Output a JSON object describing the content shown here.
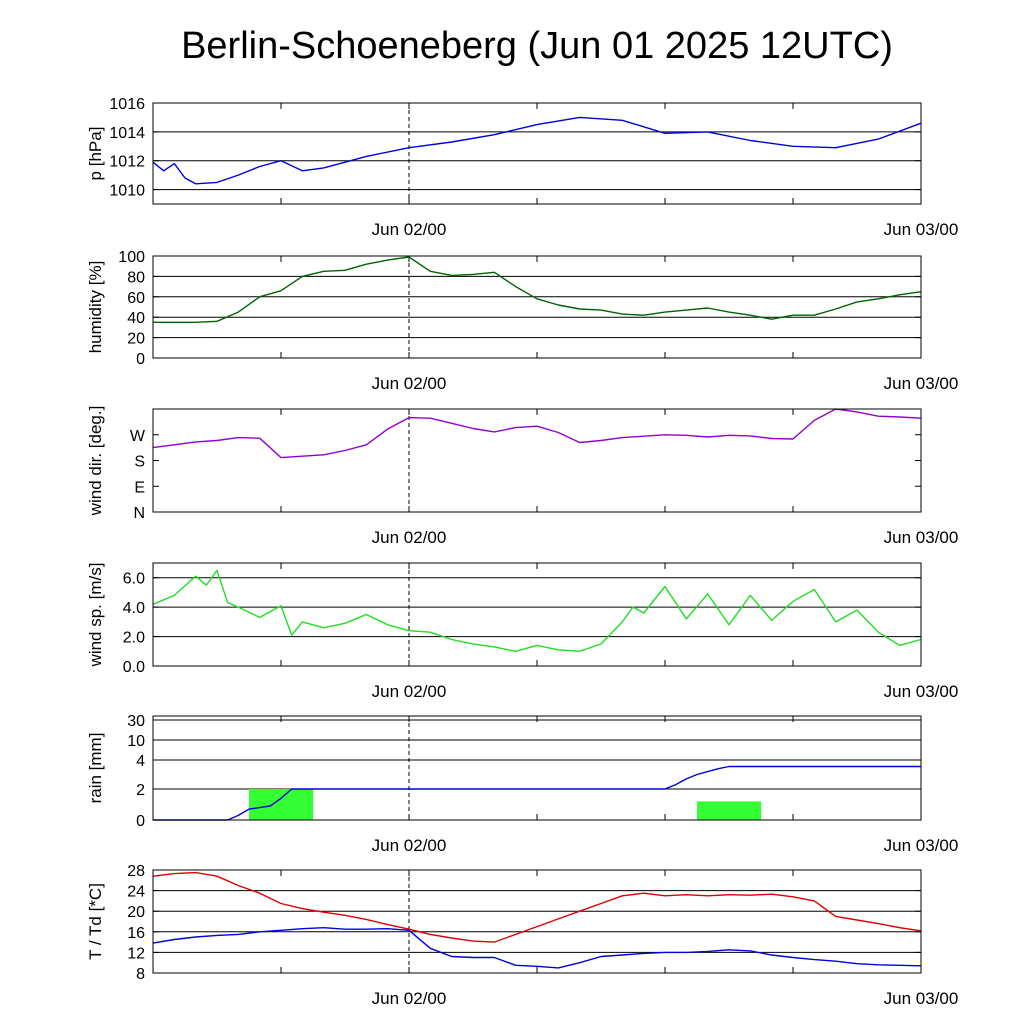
{
  "title": "Berlin-Schoeneberg (Jun 01 2025 12UTC)",
  "x_axis": {
    "tick_labels": [
      "Jun 02/00",
      "Jun 03/00"
    ],
    "start": "2025-06-01 12UTC",
    "end": "2025-06-03 00UTC"
  },
  "colors": {
    "pressure": "#0000dd",
    "humidity": "#006400",
    "wind_dir": "#9400d3",
    "wind_speed": "#22dd22",
    "rain_total": "#0000dd",
    "rain_bars": "#33ff33",
    "temperature": "#dd0000",
    "dewpoint": "#0000dd"
  },
  "chart_data": [
    {
      "id": "pressure",
      "type": "line",
      "ylabel": "p [hPa]",
      "ylim": [
        1009,
        1016
      ],
      "yticks": [
        1010,
        1012,
        1014,
        1016
      ],
      "ytick_labels": [
        "1010",
        "1012",
        "1014",
        "1016"
      ],
      "grid": true,
      "series": [
        {
          "key": "pressure",
          "x": [
            0,
            0.5,
            1,
            1.5,
            2,
            3,
            4,
            5,
            6,
            7,
            8,
            9,
            10,
            12,
            14,
            16,
            18,
            20,
            22,
            24,
            26,
            28,
            30,
            32,
            34,
            36
          ],
          "values": [
            1011.9,
            1011.3,
            1011.8,
            1010.8,
            1010.4,
            1010.5,
            1011.0,
            1011.6,
            1012.0,
            1011.3,
            1011.5,
            1011.9,
            1012.3,
            1012.9,
            1013.3,
            1013.8,
            1014.5,
            1015.0,
            1014.8,
            1013.9,
            1014.0,
            1013.4,
            1013.0,
            1012.9,
            1013.5,
            1014.6
          ]
        }
      ]
    },
    {
      "id": "humidity",
      "type": "line",
      "ylabel": "humidity [%]",
      "ylim": [
        0,
        100
      ],
      "yticks": [
        0,
        20,
        40,
        60,
        80,
        100
      ],
      "ytick_labels": [
        "0",
        "20",
        "40",
        "60",
        "80",
        "100"
      ],
      "grid": true,
      "series": [
        {
          "key": "humidity",
          "x": [
            0,
            1,
            2,
            3,
            4,
            5,
            6,
            7,
            8,
            9,
            10,
            11,
            12,
            13,
            14,
            15,
            16,
            17,
            18,
            19,
            20,
            21,
            22,
            23,
            24,
            25,
            26,
            27,
            28,
            29,
            30,
            31,
            32,
            33,
            34,
            35,
            36
          ],
          "values": [
            35,
            35,
            35,
            36,
            45,
            60,
            66,
            80,
            85,
            86,
            92,
            96,
            99,
            85,
            81,
            82,
            84,
            70,
            58,
            52,
            48,
            47,
            43,
            42,
            45,
            47,
            49,
            45,
            42,
            38,
            42,
            42,
            48,
            55,
            58,
            62,
            65
          ]
        }
      ]
    },
    {
      "id": "wind_dir",
      "type": "line",
      "ylabel": "wind dir. [deg.]",
      "ylim": [
        0,
        360
      ],
      "yticks": [
        0,
        90,
        180,
        270
      ],
      "ytick_labels": [
        "N",
        "E",
        "S",
        "W"
      ],
      "grid": false,
      "series": [
        {
          "key": "wind_dir",
          "x": [
            0,
            1,
            2,
            3,
            4,
            5,
            6,
            7,
            8,
            9,
            10,
            11,
            12,
            13,
            14,
            15,
            16,
            17,
            18,
            19,
            20,
            21,
            22,
            23,
            24,
            25,
            26,
            27,
            28,
            29,
            30,
            31,
            32,
            33,
            34,
            35,
            36
          ],
          "values": [
            225,
            235,
            245,
            250,
            260,
            258,
            190,
            195,
            200,
            215,
            235,
            290,
            330,
            328,
            310,
            292,
            280,
            295,
            300,
            278,
            243,
            250,
            260,
            265,
            270,
            268,
            262,
            268,
            266,
            257,
            255,
            320,
            360,
            350,
            335,
            332,
            328
          ]
        }
      ]
    },
    {
      "id": "wind_speed",
      "type": "line",
      "ylabel": "wind sp. [m/s]",
      "ylim": [
        0,
        7
      ],
      "yticks": [
        0,
        2,
        4,
        6
      ],
      "ytick_labels": [
        "0.0",
        "2.0",
        "4.0",
        "6.0"
      ],
      "grid": true,
      "series": [
        {
          "key": "wind_speed",
          "x": [
            0,
            1,
            2,
            2.5,
            3,
            3.5,
            4,
            5,
            6,
            6.5,
            7,
            8,
            9,
            10,
            11,
            12,
            13,
            14,
            15,
            16,
            17,
            18,
            19,
            20,
            21,
            22,
            22.5,
            23,
            24,
            25,
            26,
            27,
            28,
            29,
            30,
            31,
            32,
            33,
            34,
            35,
            36
          ],
          "values": [
            4.2,
            4.8,
            6.1,
            5.5,
            6.5,
            4.3,
            4.0,
            3.3,
            4.1,
            2.1,
            3.0,
            2.6,
            2.9,
            3.5,
            2.8,
            2.4,
            2.3,
            1.8,
            1.5,
            1.3,
            1.0,
            1.4,
            1.1,
            1.0,
            1.5,
            3.0,
            4.0,
            3.6,
            5.4,
            3.2,
            4.9,
            2.8,
            4.8,
            3.1,
            4.4,
            5.2,
            3.0,
            3.8,
            2.3,
            1.4,
            1.8
          ]
        }
      ]
    },
    {
      "id": "rain",
      "type": "bar+line",
      "ylabel": "rain [mm]",
      "ylim": [
        0,
        30
      ],
      "yticks": [
        0,
        2,
        4,
        10,
        30
      ],
      "ytick_labels": [
        "0",
        "2",
        "4",
        "10",
        "30"
      ],
      "grid": true,
      "bars": [
        {
          "x_start": 4.5,
          "x_end": 7.5,
          "value": 2.0
        },
        {
          "x_start": 25.5,
          "x_end": 28.5,
          "value": 1.2
        }
      ],
      "series": [
        {
          "key": "rain_total",
          "x": [
            0,
            3,
            3.5,
            4,
            4.5,
            5,
            5.5,
            6,
            6.5,
            12,
            20,
            24,
            24.5,
            25,
            25.5,
            26,
            26.5,
            27,
            36
          ],
          "values": [
            0,
            0,
            0,
            0.3,
            0.7,
            0.8,
            0.9,
            1.4,
            2.0,
            2.0,
            2.0,
            2.0,
            2.3,
            2.7,
            3.0,
            3.2,
            3.4,
            3.55,
            3.55
          ]
        }
      ]
    },
    {
      "id": "temperature",
      "type": "line",
      "ylabel": "T / Td [*C]",
      "ylim": [
        8,
        28
      ],
      "yticks": [
        8,
        12,
        16,
        20,
        24,
        28
      ],
      "ytick_labels": [
        "8",
        "12",
        "16",
        "20",
        "24",
        "28"
      ],
      "grid": true,
      "series": [
        {
          "key": "temperature",
          "x": [
            0,
            1,
            2,
            3,
            4,
            5,
            6,
            7,
            8,
            9,
            10,
            11,
            12,
            13,
            14,
            15,
            16,
            17,
            18,
            19,
            20,
            21,
            22,
            23,
            24,
            25,
            26,
            27,
            28,
            29,
            30,
            31,
            32,
            33,
            34,
            35,
            36
          ],
          "values": [
            26.8,
            27.3,
            27.5,
            26.8,
            25.0,
            23.5,
            21.5,
            20.5,
            19.8,
            19.2,
            18.4,
            17.4,
            16.5,
            15.5,
            14.8,
            14.2,
            14.0,
            15.5,
            17.0,
            18.5,
            20.0,
            21.5,
            23.0,
            23.5,
            23.0,
            23.2,
            23.0,
            23.2,
            23.1,
            23.3,
            22.8,
            22.0,
            19.0,
            18.3,
            17.6,
            16.8,
            16.2
          ]
        },
        {
          "key": "dewpoint",
          "x": [
            0,
            1,
            2,
            3,
            4,
            5,
            6,
            7,
            8,
            9,
            10,
            11,
            12,
            13,
            14,
            15,
            16,
            17,
            18,
            19,
            20,
            21,
            22,
            23,
            24,
            25,
            26,
            27,
            28,
            29,
            30,
            31,
            32,
            33,
            34,
            35,
            36
          ],
          "values": [
            13.8,
            14.5,
            15.0,
            15.3,
            15.5,
            16.0,
            16.3,
            16.6,
            16.8,
            16.5,
            16.5,
            16.6,
            16.3,
            12.8,
            11.2,
            11.0,
            11.0,
            9.5,
            9.3,
            9.0,
            10.0,
            11.2,
            11.5,
            11.8,
            12.0,
            12.0,
            12.2,
            12.5,
            12.3,
            11.5,
            11.0,
            10.6,
            10.3,
            9.8,
            9.6,
            9.5,
            9.4
          ]
        }
      ]
    }
  ]
}
